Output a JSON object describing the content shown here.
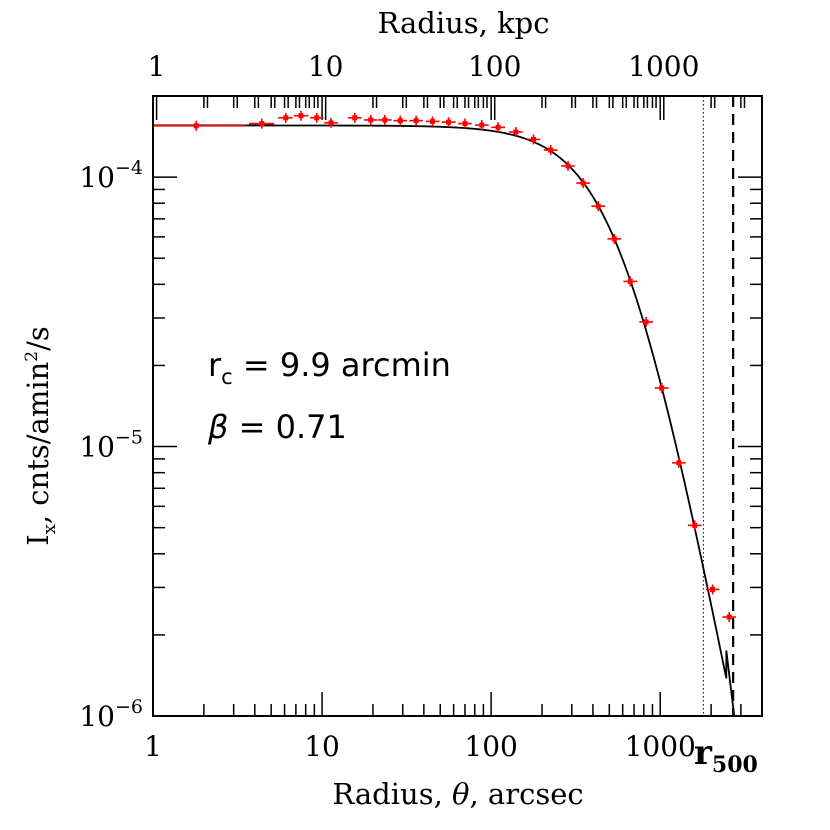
{
  "chart_data": {
    "type": "scatter",
    "x_scale": "log",
    "y_scale": "log",
    "xlim": [
      1,
      4000
    ],
    "ylim": [
      1e-06,
      0.0002
    ],
    "top_axis": {
      "label": "Radius, kpc",
      "ticks": [
        {
          "label": "1",
          "value": 1
        },
        {
          "label": "10",
          "value": 10
        },
        {
          "label": "100",
          "value": 100
        },
        {
          "label": "1000",
          "value": 1000
        }
      ],
      "arcsec_per_kpc": 1.05
    },
    "bottom_axis": {
      "label_prefix": "Radius, ",
      "label_symbol": "θ",
      "label_suffix": ", arcsec",
      "ticks": [
        {
          "label": "1",
          "value": 1
        },
        {
          "label": "10",
          "value": 10
        },
        {
          "label": "100",
          "value": 100
        },
        {
          "label": "1000",
          "value": 1000
        }
      ]
    },
    "left_axis": {
      "label_main": "I",
      "label_sub": "x",
      "label_mid": ", cnts/amin",
      "label_sup": "2",
      "label_end": "/s",
      "ticks": [
        {
          "base": "10",
          "exp": "−4",
          "value": 0.0001
        },
        {
          "base": "10",
          "exp": "−5",
          "value": 1e-05
        },
        {
          "base": "10",
          "exp": "−6",
          "value": 1e-06
        }
      ]
    },
    "annotation": {
      "rc_symbol": "r",
      "rc_sub": "c",
      "rc_text": " = 9.9 arcmin",
      "beta_symbol": "β",
      "beta_text": " = 0.71"
    },
    "r500_label": {
      "main": "r",
      "sub": "500"
    },
    "vlines": [
      {
        "x": 1800,
        "style": "dotted"
      },
      {
        "x": 2700,
        "style": "dashed"
      }
    ],
    "points": [
      {
        "x": 1.8,
        "y": 0.000155,
        "xerr": [
          1.0,
          3.5
        ]
      },
      {
        "x": 4.4,
        "y": 0.000158,
        "xerr": [
          3.7,
          5.2
        ]
      },
      {
        "x": 6.1,
        "y": 0.000166,
        "xerr": [
          5.5,
          6.7
        ]
      },
      {
        "x": 7.5,
        "y": 0.000169,
        "xerr": [
          6.8,
          8.3
        ]
      },
      {
        "x": 9.3,
        "y": 0.000166,
        "xerr": [
          8.5,
          10.2
        ]
      },
      {
        "x": 11.3,
        "y": 0.000159,
        "xerr": [
          10.3,
          12.4
        ]
      },
      {
        "x": 15.6,
        "y": 0.000166,
        "xerr": [
          14.2,
          17.1
        ]
      },
      {
        "x": 19.4,
        "y": 0.000163,
        "xerr": [
          17.7,
          21.2
        ]
      },
      {
        "x": 23.5,
        "y": 0.000163,
        "xerr": [
          21.4,
          25.8
        ]
      },
      {
        "x": 29.0,
        "y": 0.000162,
        "xerr": [
          26.4,
          31.8
        ]
      },
      {
        "x": 36.0,
        "y": 0.000162,
        "xerr": [
          32.8,
          39.5
        ]
      },
      {
        "x": 45.0,
        "y": 0.000161,
        "xerr": [
          41.0,
          49.4
        ]
      },
      {
        "x": 56.0,
        "y": 0.00016,
        "xerr": [
          51.0,
          61.5
        ]
      },
      {
        "x": 70.0,
        "y": 0.000158,
        "xerr": [
          63.8,
          76.8
        ]
      },
      {
        "x": 88.0,
        "y": 0.000156,
        "xerr": [
          80.2,
          96.6
        ]
      },
      {
        "x": 110.0,
        "y": 0.000153,
        "xerr": [
          100.2,
          120.8
        ]
      },
      {
        "x": 140.0,
        "y": 0.000147,
        "xerr": [
          127.5,
          153.7
        ]
      },
      {
        "x": 178.0,
        "y": 0.000138,
        "xerr": [
          162.1,
          195.4
        ]
      },
      {
        "x": 225.0,
        "y": 0.000126,
        "xerr": [
          205.0,
          247.0
        ]
      },
      {
        "x": 285.0,
        "y": 0.00011,
        "xerr": [
          259.6,
          312.9
        ]
      },
      {
        "x": 350.0,
        "y": 9.5e-05,
        "xerr": [
          318.8,
          384.3
        ]
      },
      {
        "x": 430.0,
        "y": 7.8e-05,
        "xerr": [
          391.7,
          472.1
        ]
      },
      {
        "x": 535.0,
        "y": 5.9e-05,
        "xerr": [
          487.4,
          587.4
        ]
      },
      {
        "x": 665.0,
        "y": 4.1e-05,
        "xerr": [
          605.8,
          730.1
        ]
      },
      {
        "x": 825.0,
        "y": 2.9e-05,
        "xerr": [
          751.5,
          905.8
        ]
      },
      {
        "x": 1020.0,
        "y": 1.65e-05,
        "xerr": [
          929.2,
          1119.9
        ]
      },
      {
        "x": 1290.0,
        "y": 8.7e-06,
        "xerr": [
          1175.1,
          1416.4
        ]
      },
      {
        "x": 1600.0,
        "y": 5.1e-06,
        "xerr": [
          1457.6,
          1756.8
        ]
      },
      {
        "x": 2040.0,
        "y": 2.95e-06,
        "xerr": [
          1858.4,
          2239.9
        ]
      },
      {
        "x": 2560.0,
        "y": 2.33e-06,
        "xerr": [
          2332.1,
          2810.9
        ]
      }
    ],
    "model": {
      "form": "beta",
      "i0": 0.0001555,
      "rc_arcsec": 594,
      "beta": 0.71,
      "x_range": [
        1,
        2740
      ],
      "tail": [
        {
          "x": 2460,
          "y": 1.75e-06
        },
        {
          "x": 2740,
          "y": 1e-06
        }
      ]
    },
    "colors": {
      "data": "#ff0000",
      "model": "#000000",
      "axis": "#000000"
    }
  }
}
